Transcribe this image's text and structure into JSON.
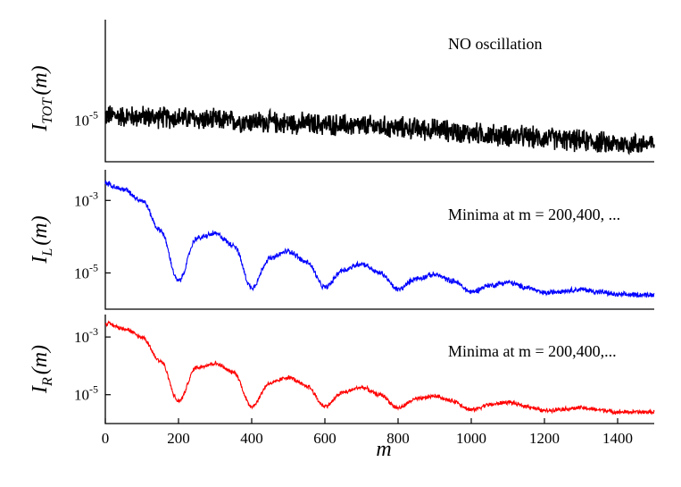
{
  "chart_data": [
    {
      "type": "line",
      "panel": "top",
      "ylabel": {
        "main": "I",
        "sub": "TOT",
        "arg": "(m)"
      },
      "annotation": "NO oscillation",
      "y_scale": "log",
      "ylim": [
        2e-06,
        0.0005
      ],
      "y_ticks": [
        {
          "value": 1e-05,
          "label": "10-5",
          "base": "10",
          "exp": "-5"
        }
      ],
      "xlim": [
        0,
        1500
      ],
      "series": [
        {
          "color": "#000000",
          "x": [
            0,
            100,
            200,
            300,
            400,
            500,
            600,
            700,
            800,
            900,
            1000,
            1100,
            1200,
            1300,
            1400,
            1500
          ],
          "y": [
            1.2e-05,
            1.15e-05,
            1.1e-05,
            1e-05,
            9.5e-06,
            9e-06,
            8.5e-06,
            8e-06,
            7.5e-06,
            7e-06,
            6e-06,
            5.5e-06,
            5e-06,
            4.5e-06,
            4e-06,
            4e-06
          ]
        }
      ]
    },
    {
      "type": "line",
      "panel": "middle",
      "ylabel": {
        "main": "I",
        "sub": "L",
        "arg": "(m)"
      },
      "annotation": "Minima at m = 200,400, ...",
      "y_scale": "log",
      "ylim": [
        1e-06,
        0.007
      ],
      "y_ticks": [
        {
          "value": 0.001,
          "label": "10-3",
          "base": "10",
          "exp": "-3"
        },
        {
          "value": 1e-05,
          "label": "10-5",
          "base": "10",
          "exp": "-5"
        }
      ],
      "xlim": [
        0,
        1500
      ],
      "series": [
        {
          "color": "#0000ff",
          "x": [
            0,
            50,
            100,
            150,
            200,
            250,
            300,
            350,
            400,
            450,
            500,
            550,
            600,
            650,
            700,
            750,
            800,
            850,
            900,
            950,
            1000,
            1050,
            1100,
            1150,
            1200,
            1250,
            1300,
            1350,
            1400,
            1450,
            1500
          ],
          "y": [
            0.003,
            0.002,
            0.001,
            0.00015,
            6e-06,
            9e-05,
            0.00012,
            6e-05,
            4e-06,
            2.5e-05,
            4e-05,
            2e-05,
            4e-06,
            1.2e-05,
            1.8e-05,
            1e-05,
            3.5e-06,
            7e-06,
            9e-06,
            6e-06,
            3e-06,
            4.5e-06,
            5.5e-06,
            4e-06,
            2.8e-06,
            3.2e-06,
            3.5e-06,
            3e-06,
            2.5e-06,
            2.5e-06,
            2.5e-06
          ]
        }
      ]
    },
    {
      "type": "line",
      "panel": "bottom",
      "ylabel": {
        "main": "I",
        "sub": "R",
        "arg": "(m)"
      },
      "annotation": "Minima at m = 200,400,...",
      "y_scale": "log",
      "ylim": [
        1e-06,
        0.006
      ],
      "y_ticks": [
        {
          "value": 0.001,
          "label": "10-3",
          "base": "10",
          "exp": "-3"
        },
        {
          "value": 1e-05,
          "label": "10-5",
          "base": "10",
          "exp": "-5"
        }
      ],
      "xlim": [
        0,
        1500
      ],
      "x_ticks": [
        0,
        200,
        400,
        600,
        800,
        1000,
        1200,
        1400
      ],
      "xlabel": "m",
      "series": [
        {
          "color": "#ff0000",
          "x": [
            0,
            50,
            100,
            150,
            200,
            250,
            300,
            350,
            400,
            450,
            500,
            550,
            600,
            650,
            700,
            750,
            800,
            850,
            900,
            950,
            1000,
            1050,
            1100,
            1150,
            1200,
            1250,
            1300,
            1350,
            1400,
            1450,
            1500
          ],
          "y": [
            0.003,
            0.002,
            0.001,
            0.00015,
            6e-06,
            9e-05,
            0.00012,
            6e-05,
            4e-06,
            2.5e-05,
            4e-05,
            2e-05,
            4e-06,
            1.2e-05,
            1.8e-05,
            1e-05,
            3.5e-06,
            7e-06,
            9e-06,
            6e-06,
            3e-06,
            4.5e-06,
            5.5e-06,
            4e-06,
            2.8e-06,
            3.2e-06,
            3.5e-06,
            3e-06,
            2.5e-06,
            2.5e-06,
            2.5e-06
          ]
        }
      ]
    }
  ]
}
